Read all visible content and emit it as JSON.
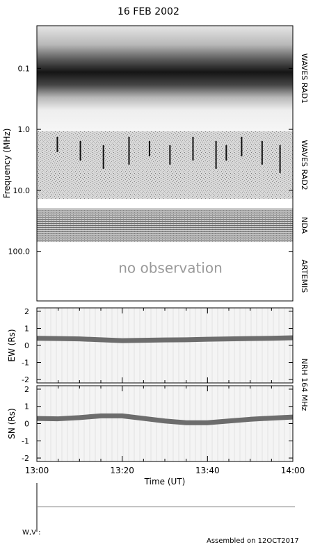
{
  "title": "16 FEB 2002",
  "footer_text": "Assembled on 12OCT2017",
  "wv_label": "W,V :",
  "colors": {
    "axis": "#000000",
    "no_observation": "#999999",
    "trace": "#555555"
  },
  "chart_data": [
    {
      "type": "heatmap",
      "name": "radio-spectrogram",
      "ylabel": "Frequency (MHz)",
      "y_scale": "log",
      "y_inverted": true,
      "y_tick_labels": [
        "0.1",
        "1.0",
        "10.0",
        "100.0"
      ],
      "y_tick_values": [
        0.1,
        1.0,
        10.0,
        100.0
      ],
      "xlim": [
        "13:00",
        "14:00"
      ],
      "instruments": [
        {
          "label": "WAVES RAD1",
          "freq_range_mhz": [
            0.02,
            1.075
          ]
        },
        {
          "label": "WAVES RAD2",
          "freq_range_mhz": [
            1.075,
            13.825
          ]
        },
        {
          "label": "NDA",
          "freq_range_mhz": [
            20,
            70
          ]
        },
        {
          "label": "ARTEMIS",
          "freq_range_mhz": [
            100,
            650
          ]
        }
      ],
      "annotation": "no observation"
    },
    {
      "type": "heatmap",
      "name": "nrh-ew",
      "ylabel": "EW (Rs)",
      "ylim": [
        -2.2,
        2.2
      ],
      "y_tick_labels": [
        "-2",
        "-1",
        "0",
        "1",
        "2"
      ],
      "y_tick_values": [
        -2,
        -1,
        0,
        1,
        2
      ],
      "xlim": [
        "13:00",
        "14:00"
      ],
      "source_position": {
        "time": [
          "13:00",
          "13:05",
          "13:10",
          "13:15",
          "13:20",
          "13:25",
          "13:30",
          "13:35",
          "13:40",
          "13:45",
          "13:50",
          "13:55",
          "14:00"
        ],
        "values": [
          0.42,
          0.4,
          0.38,
          0.33,
          0.28,
          0.3,
          0.32,
          0.33,
          0.36,
          0.38,
          0.4,
          0.42,
          0.45
        ]
      }
    },
    {
      "type": "heatmap",
      "name": "nrh-sn",
      "ylabel": "SN (Rs)",
      "ylim": [
        -2.2,
        2.2
      ],
      "y_tick_labels": [
        "-2",
        "-1",
        "0",
        "1",
        "2"
      ],
      "y_tick_values": [
        -2,
        -1,
        0,
        1,
        2
      ],
      "xlim": [
        "13:00",
        "14:00"
      ],
      "xlabel": "Time (UT)",
      "x_tick_labels": [
        "13:00",
        "13:20",
        "13:40",
        "14:00"
      ],
      "source_position": {
        "time": [
          "13:00",
          "13:05",
          "13:10",
          "13:15",
          "13:20",
          "13:25",
          "13:30",
          "13:35",
          "13:40",
          "13:45",
          "13:50",
          "13:55",
          "14:00"
        ],
        "values": [
          0.3,
          0.28,
          0.35,
          0.45,
          0.45,
          0.3,
          0.15,
          0.05,
          0.05,
          0.15,
          0.25,
          0.32,
          0.38
        ]
      }
    }
  ],
  "nrh_label": "NRH 164 MHz"
}
